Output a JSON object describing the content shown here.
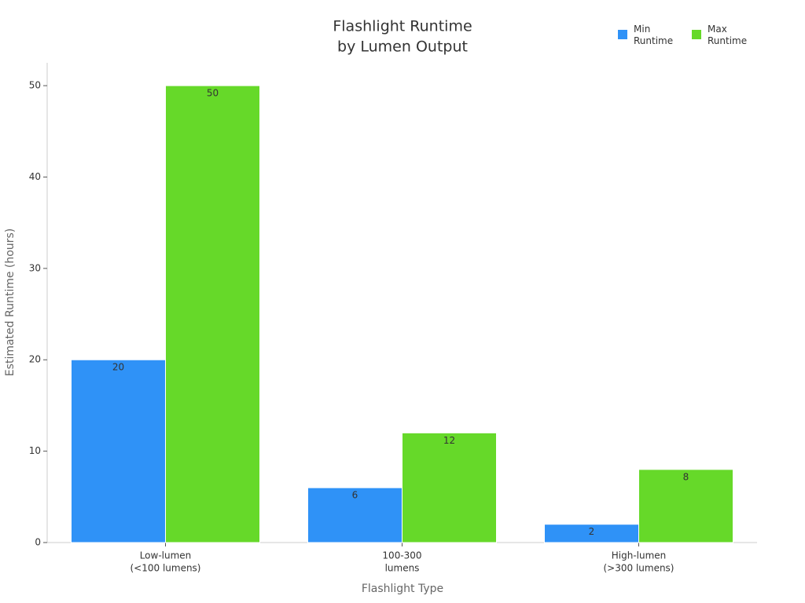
{
  "chart_data": {
    "type": "bar",
    "title": [
      "Flashlight Runtime",
      "by Lumen Output"
    ],
    "x_label": "Flashlight Type",
    "y_label": "Estimated Runtime (hours)",
    "categories": [
      [
        "Low-lumen",
        "(<100 lumens)"
      ],
      [
        "100-300",
        "lumens"
      ],
      [
        "High-lumen",
        "(>300 lumens)"
      ]
    ],
    "series": [
      {
        "name": "Min Runtime",
        "color": "#2f92f7",
        "values": [
          20,
          6,
          2
        ]
      },
      {
        "name": "Max Runtime",
        "color": "#66d929",
        "values": [
          50,
          12,
          8
        ]
      }
    ],
    "ylim": [
      0,
      52.5
    ],
    "yticks": [
      0,
      10,
      20,
      30,
      40,
      50
    ]
  }
}
